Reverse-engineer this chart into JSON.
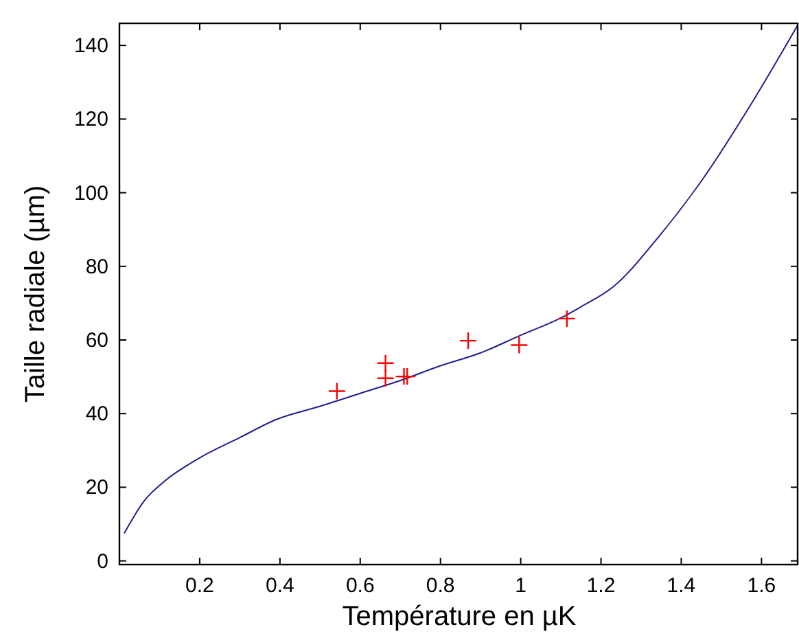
{
  "chart_data": {
    "type": "line",
    "xlabel": "Température en µK",
    "ylabel": "Taille radiale (µm)",
    "xlim": [
      0,
      1.69
    ],
    "ylim": [
      -1,
      146
    ],
    "xticks": [
      0.2,
      0.4,
      0.6,
      0.8,
      1,
      1.2,
      1.4,
      1.6
    ],
    "yticks": [
      0,
      20,
      40,
      60,
      80,
      100,
      120,
      140
    ],
    "grid": false,
    "series": [
      {
        "color": "#1f1f8f",
        "marker": "none",
        "x": [
          0.012,
          0.061,
          0.112,
          0.2,
          0.3,
          0.391,
          0.5,
          0.6,
          0.7,
          0.8,
          0.9,
          0.998,
          1.1,
          1.15,
          1.231,
          1.345,
          1.458,
          1.572,
          1.69
        ],
        "values": [
          7.5,
          16.2,
          21.6,
          28,
          33.5,
          38.4,
          42,
          45.5,
          49,
          53,
          56.5,
          61.2,
          66,
          69,
          74.5,
          88.2,
          104.4,
          123.7,
          145.5
        ]
      },
      {
        "type": "scatter",
        "color": "#ff0000",
        "marker": "cross",
        "x": [
          0.542,
          0.663,
          0.663,
          0.709,
          0.717,
          0.869,
          0.996,
          1.115
        ],
        "values": [
          46.1,
          53.7,
          49.6,
          50.1,
          50.1,
          59.8,
          58.6,
          65.8
        ]
      }
    ]
  }
}
